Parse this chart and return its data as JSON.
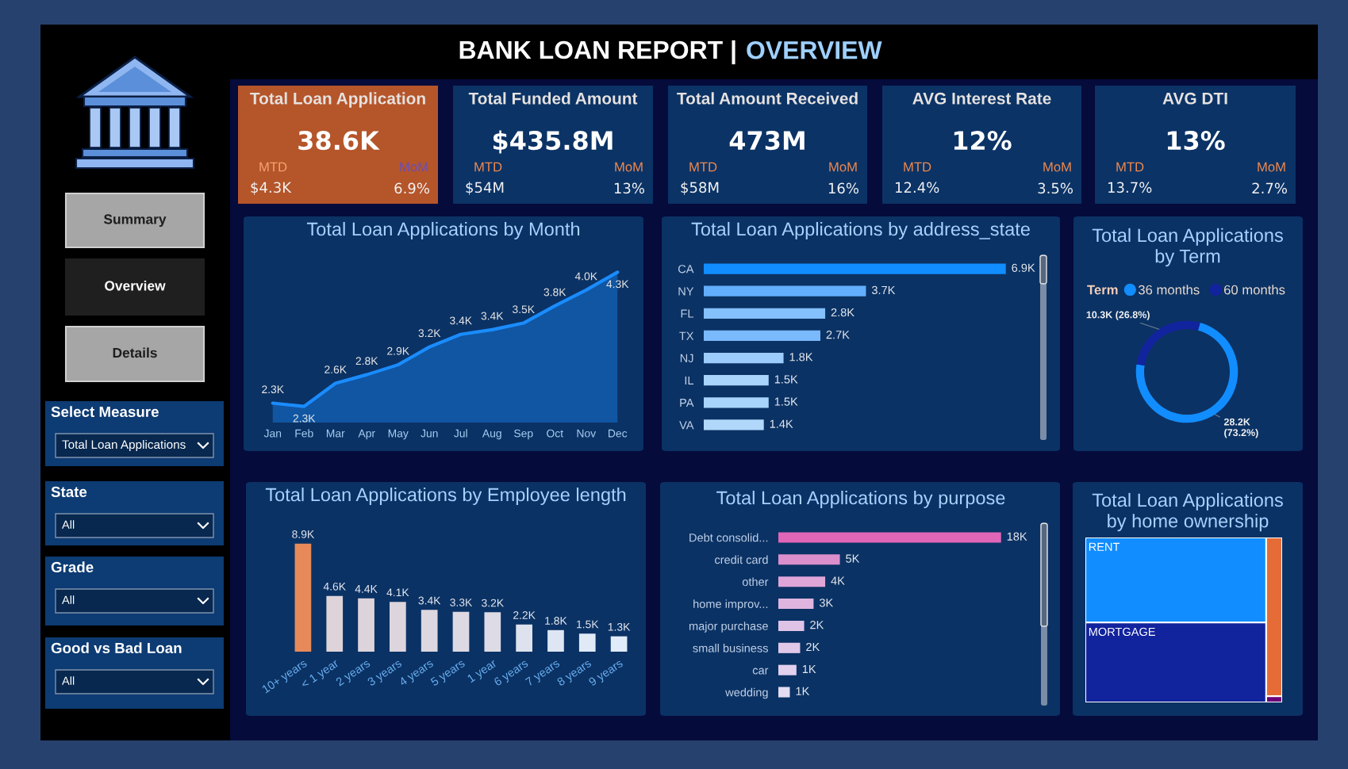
{
  "chart_data": [
    {
      "type": "other",
      "title": "BANK LOAN REPORT |",
      "subtitle": "OVERVIEW",
      "annotations": [
        "Summary",
        "Overview",
        "Details",
        "Select Measure",
        "Total Loan Applications",
        "State",
        "All",
        "Grade",
        "All",
        "Good vs Bad Loan",
        "All"
      ]
    },
    {
      "type": "other",
      "title": "Total Loan Application",
      "color": "#b5552a",
      "annotations": [
        "38.6K",
        "MTD",
        "$4.3K",
        "MoM",
        "6.9%"
      ]
    },
    {
      "type": "other",
      "title": "Total Funded Amount",
      "color": "#0b3366",
      "annotations": [
        "$435.8M",
        "MTD",
        "$54M",
        "MoM",
        "13%"
      ]
    },
    {
      "type": "other",
      "title": "Total Amount Received",
      "color": "#0b3366",
      "annotations": [
        "473M",
        "MTD",
        "$58M",
        "MoM",
        "16%"
      ]
    },
    {
      "type": "other",
      "title": "AVG Interest Rate",
      "color": "#0b3366",
      "annotations": [
        "12%",
        "MTD",
        "12.4%",
        "MoM",
        "3.5%"
      ]
    },
    {
      "type": "other",
      "title": "AVG DTI",
      "color": "#0b3366",
      "annotations": [
        "13%",
        "MTD",
        "13.7%",
        "MoM",
        "2.7%"
      ]
    },
    {
      "type": "area",
      "title": "Total Loan Applications by Month",
      "categories": [
        "Jan",
        "Feb",
        "Mar",
        "Apr",
        "May",
        "Jun",
        "Jul",
        "Aug",
        "Sep",
        "Oct",
        "Nov",
        "Dec"
      ],
      "values": [
        2.33,
        2.28,
        2.63,
        2.76,
        2.91,
        3.18,
        3.37,
        3.44,
        3.54,
        3.8,
        4.04,
        4.31
      ],
      "value_labels": [
        "2.3K",
        "2.3K",
        "2.6K",
        "2.8K",
        "2.9K",
        "3.2K",
        "3.4K",
        "3.4K",
        "3.5K",
        "3.8K",
        "4.0K",
        "4.3K"
      ],
      "color": "#1a8cff",
      "tick_labels": "x"
    },
    {
      "type": "bar",
      "orientation": "horizontal",
      "title": "Total Loan Applications by address_state",
      "categories": [
        "CA",
        "NY",
        "FL",
        "TX",
        "NJ",
        "IL",
        "PA",
        "VA"
      ],
      "values": [
        6.89,
        3.7,
        2.77,
        2.66,
        1.82,
        1.48,
        1.48,
        1.37
      ],
      "value_labels": [
        "6.9K",
        "3.7K",
        "2.8K",
        "2.7K",
        "1.8K",
        "1.5K",
        "1.5K",
        "1.4K"
      ],
      "colors": [
        "#118dff",
        "#63aefc",
        "#84c0fc",
        "#7ab9fb",
        "#9bccfb",
        "#a8d3fb",
        "#a8d3fb",
        "#b1d8fb"
      ],
      "tick_labels": "y"
    },
    {
      "type": "donut",
      "title": "Total Loan Applications\nby Term",
      "categories": [
        "36 months",
        "60 months"
      ],
      "values": [
        73.2,
        26.8
      ],
      "colors": [
        "#118dff",
        "#12239e"
      ],
      "value_labels": [
        "28.2K\n(73.2%)",
        "10.3K (26.8%)"
      ],
      "legend": "top",
      "legend_title": "Term"
    },
    {
      "type": "bar",
      "title": "Total Loan Applications by Employee length",
      "categories": [
        "10+ years",
        "< 1 year",
        "2 years",
        "3 years",
        "4 years",
        "5 years",
        "1 year",
        "6 years",
        "7 years",
        "8 years",
        "9 years"
      ],
      "values": [
        8.87,
        4.58,
        4.38,
        4.09,
        3.43,
        3.27,
        3.23,
        2.23,
        1.77,
        1.48,
        1.26
      ],
      "value_labels": [
        "8.9K",
        "4.6K",
        "4.4K",
        "4.1K",
        "3.4K",
        "3.3K",
        "3.2K",
        "2.2K",
        "1.8K",
        "1.5K",
        "1.3K"
      ],
      "colors": [
        "#e8895a",
        "#ddd3d9",
        "#ddd4db",
        "#ddd5dd",
        "#ddd7e0",
        "#ddd9e3",
        "#dddbe6",
        "#dee2ee",
        "#dfe6f3",
        "#e0e9f6",
        "#e0ecf9"
      ],
      "tick_labels": "x"
    },
    {
      "type": "bar",
      "orientation": "horizontal",
      "title": "Total Loan Applications by purpose",
      "categories": [
        "Debt consolid...",
        "credit card",
        "other",
        "home improv...",
        "major purchase",
        "small business",
        "car",
        "wedding"
      ],
      "values": [
        18.2,
        5.03,
        3.83,
        2.88,
        2.11,
        1.78,
        1.48,
        0.94
      ],
      "value_labels": [
        "18K",
        "5K",
        "4K",
        "3K",
        "2K",
        "2K",
        "1K",
        "1K"
      ],
      "colors": [
        "#e066b8",
        "#db8fcc",
        "#dea5d8",
        "#dfb5df",
        "#dfc3e6",
        "#e0c8e9",
        "#e1d1ee",
        "#e3dcf3"
      ],
      "tick_labels": "y"
    },
    {
      "type": "other",
      "title": "Total Loan Applications\nby home ownership",
      "categories": [
        "RENT",
        "MORTGAGE",
        null,
        null
      ],
      "colors": [
        "#118dff",
        "#12239e",
        "#e66c37",
        "#6b007b"
      ]
    }
  ]
}
